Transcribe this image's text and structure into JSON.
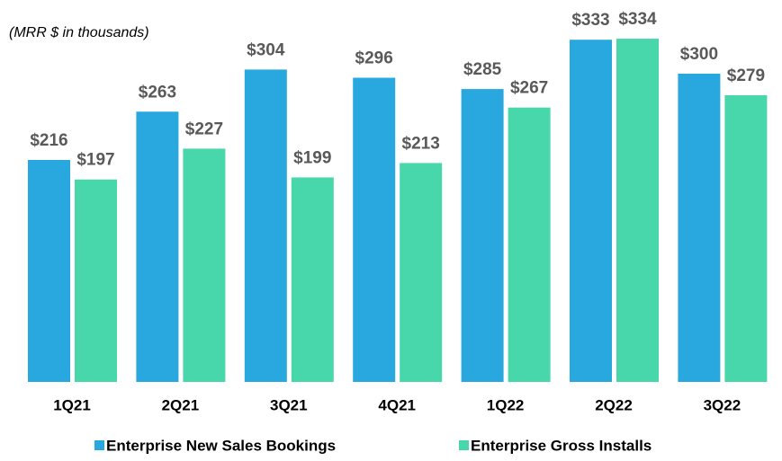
{
  "chart_data": {
    "type": "bar",
    "subtitle": "(MRR $ in thousands)",
    "categories": [
      "1Q21",
      "2Q21",
      "3Q21",
      "4Q21",
      "1Q22",
      "2Q22",
      "3Q22"
    ],
    "series": [
      {
        "name": "Enterprise New Sales Bookings",
        "color": "#29a8e0",
        "values": [
          216,
          263,
          304,
          296,
          285,
          333,
          300
        ],
        "value_labels": [
          "$216",
          "$263",
          "$304",
          "$296",
          "$285",
          "$333",
          "$300"
        ]
      },
      {
        "name": "Enterprise Gross Installs",
        "color": "#48d6ab",
        "values": [
          197,
          227,
          199,
          213,
          267,
          334,
          279
        ],
        "value_labels": [
          "$197",
          "$227",
          "$199",
          "$213",
          "$267",
          "$334",
          "$279"
        ]
      }
    ]
  }
}
